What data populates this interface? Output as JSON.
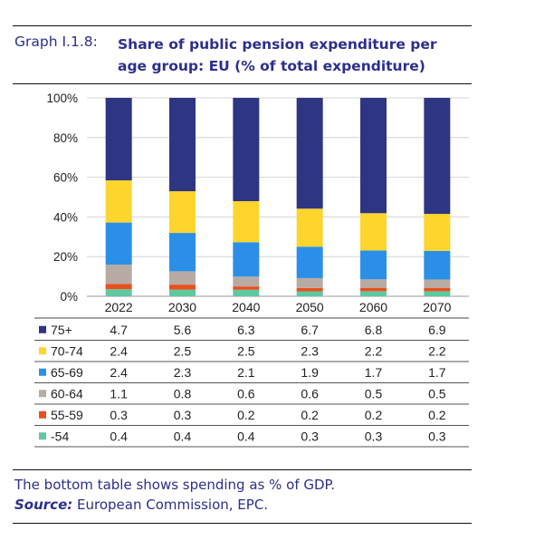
{
  "header": {
    "graph_label": "Graph I.1.8:",
    "title_line1": "Share of public pension expenditure per",
    "title_line2": "age group: EU (% of total expenditure)"
  },
  "footer": {
    "note": "The bottom table shows spending as % of GDP.",
    "source_label": "Source:",
    "source_text": "European Commission, EPC."
  },
  "chart_data": {
    "type": "bar",
    "stacked": true,
    "title": "Share of public pension expenditure per age group: EU (% of total expenditure)",
    "categories": [
      "2022",
      "2030",
      "2040",
      "2050",
      "2060",
      "2070"
    ],
    "yticks": [
      "0%",
      "20%",
      "40%",
      "60%",
      "80%",
      "100%"
    ],
    "ylim": [
      0,
      100
    ],
    "grid": true,
    "values_unit": "% of GDP",
    "series": [
      {
        "name": "-54",
        "color": "#5ec9a0",
        "values": [
          0.4,
          0.4,
          0.4,
          0.3,
          0.3,
          0.3
        ]
      },
      {
        "name": "55-59",
        "color": "#e8501e",
        "values": [
          0.3,
          0.3,
          0.2,
          0.2,
          0.2,
          0.2
        ]
      },
      {
        "name": "60-64",
        "color": "#b7aba3",
        "values": [
          1.1,
          0.8,
          0.6,
          0.6,
          0.5,
          0.5
        ]
      },
      {
        "name": "65-69",
        "color": "#2b8fe8",
        "values": [
          2.4,
          2.3,
          2.1,
          1.9,
          1.7,
          1.7
        ]
      },
      {
        "name": "70-74",
        "color": "#fdd52c",
        "values": [
          2.4,
          2.5,
          2.5,
          2.3,
          2.2,
          2.2
        ]
      },
      {
        "name": "75+",
        "color": "#2e3582",
        "values": [
          4.7,
          5.6,
          6.3,
          6.7,
          6.8,
          6.9
        ]
      }
    ],
    "table": {
      "row_order": [
        "75+",
        "70-74",
        "65-69",
        "60-64",
        "55-59",
        "-54"
      ],
      "rows": [
        [
          "4.7",
          "5.6",
          "6.3",
          "6.7",
          "6.8",
          "6.9"
        ],
        [
          "2.4",
          "2.5",
          "2.5",
          "2.3",
          "2.2",
          "2.2"
        ],
        [
          "2.4",
          "2.3",
          "2.1",
          "1.9",
          "1.7",
          "1.7"
        ],
        [
          "1.1",
          "0.8",
          "0.6",
          "0.6",
          "0.5",
          "0.5"
        ],
        [
          "0.3",
          "0.3",
          "0.2",
          "0.2",
          "0.2",
          "0.2"
        ],
        [
          "0.4",
          "0.4",
          "0.4",
          "0.3",
          "0.3",
          "0.3"
        ]
      ]
    }
  }
}
